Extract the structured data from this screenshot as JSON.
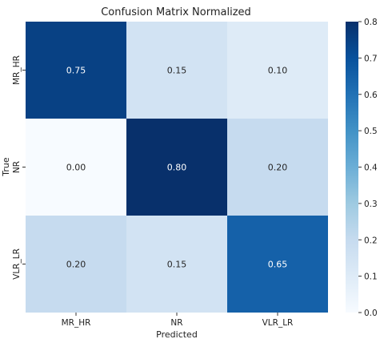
{
  "chart_data": {
    "type": "heatmap",
    "title": "Confusion Matrix Normalized",
    "xlabel": "Predicted",
    "ylabel": "True",
    "x_categories": [
      "MR_HR",
      "NR",
      "VLR_LR"
    ],
    "y_categories": [
      "MR_HR",
      "NR",
      "VLR_LR"
    ],
    "values": [
      [
        0.75,
        0.15,
        0.1
      ],
      [
        0.0,
        0.8,
        0.2
      ],
      [
        0.2,
        0.15,
        0.65
      ]
    ],
    "value_format": "2dp",
    "colormap": "Blues",
    "vmin": 0.0,
    "vmax": 0.8,
    "colorbar_ticks": [
      "0.0",
      "0.1",
      "0.2",
      "0.3",
      "0.4",
      "0.5",
      "0.6",
      "0.7",
      "0.8"
    ],
    "grid": false
  }
}
